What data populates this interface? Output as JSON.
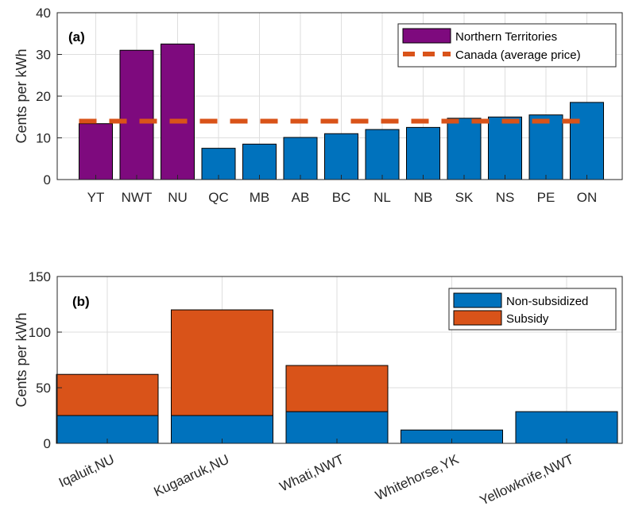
{
  "chart_data": [
    {
      "type": "bar",
      "panel_label": "(a)",
      "ylabel": "Cents per kWh",
      "ylim": [
        0,
        40
      ],
      "yticks": [
        0,
        10,
        20,
        30,
        40
      ],
      "grid": true,
      "legend_position": "top-right",
      "categories": [
        "YT",
        "NWT",
        "NU",
        "QC",
        "MB",
        "AB",
        "BC",
        "NL",
        "NB",
        "SK",
        "NS",
        "PE",
        "ON"
      ],
      "values": [
        13.4,
        31,
        32.5,
        7.5,
        8.5,
        10.1,
        11,
        12,
        12.5,
        14.7,
        15,
        15.5,
        18.5
      ],
      "highlight_count": 3,
      "colors": {
        "highlight": "#7E0A7E",
        "default": "#0072BD",
        "reference": "#D95319"
      },
      "series": [
        {
          "name": "Northern Territories",
          "kind": "bar"
        },
        {
          "name": "Canada (average price)",
          "kind": "dashed-line",
          "value": 14
        }
      ]
    },
    {
      "type": "bar",
      "stacked": true,
      "panel_label": "(b)",
      "ylabel": "Cents per kWh",
      "ylim": [
        0,
        150
      ],
      "yticks": [
        0,
        50,
        100,
        150
      ],
      "grid": true,
      "legend_position": "top-right",
      "categories": [
        "Iqaluit,NU",
        "Kugaaruk,NU",
        "Whati,NWT",
        "Whitehorse,YK",
        "Yellowknife,NWT"
      ],
      "series": [
        {
          "name": "Non-subsidized",
          "color": "#0072BD",
          "values": [
            25,
            25,
            28.5,
            12,
            28.5
          ]
        },
        {
          "name": "Subsidy",
          "color": "#D95319",
          "values": [
            37,
            95,
            41.5,
            0,
            0
          ]
        }
      ]
    }
  ]
}
